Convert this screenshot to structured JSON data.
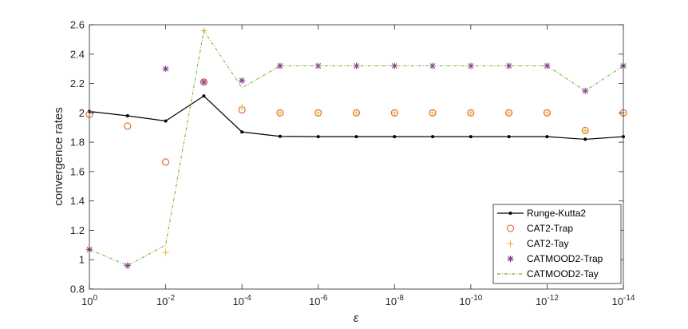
{
  "chart_data": {
    "type": "line",
    "xlabel": "ε",
    "ylabel": "convergence rates",
    "x_scale": "log-reversed",
    "xlim": [
      1,
      1e-14
    ],
    "ylim": [
      0.8,
      2.6
    ],
    "x_ticks": [
      {
        "value": 1,
        "base": "10",
        "exp": "0"
      },
      {
        "value": 0.01,
        "base": "10",
        "exp": "-2"
      },
      {
        "value": 0.0001,
        "base": "10",
        "exp": "-4"
      },
      {
        "value": 1e-06,
        "base": "10",
        "exp": "-6"
      },
      {
        "value": 1e-08,
        "base": "10",
        "exp": "-8"
      },
      {
        "value": 1e-10,
        "base": "10",
        "exp": "-10"
      },
      {
        "value": 1e-12,
        "base": "10",
        "exp": "-12"
      },
      {
        "value": 1e-14,
        "base": "10",
        "exp": "-14"
      }
    ],
    "y_ticks": [
      "0.8",
      "1",
      "1.2",
      "1.4",
      "1.6",
      "1.8",
      "2",
      "2.2",
      "2.4",
      "2.6"
    ],
    "x": [
      1,
      0.1,
      0.01,
      0.001,
      0.0001,
      1e-05,
      1e-06,
      1e-07,
      1e-08,
      1e-09,
      1e-10,
      1e-11,
      1e-12,
      1e-13,
      1e-14
    ],
    "series": [
      {
        "name": "Runge-Kutta2",
        "style": "line-dot",
        "color": "#000000",
        "values": [
          2.01,
          1.98,
          1.945,
          2.115,
          1.87,
          1.84,
          1.838,
          1.838,
          1.838,
          1.838,
          1.838,
          1.838,
          1.838,
          1.82,
          1.838
        ]
      },
      {
        "name": "CAT2-Trap",
        "style": "circle",
        "color": "#D95319",
        "values": [
          1.99,
          1.91,
          1.665,
          2.21,
          2.02,
          2.0,
          2.0,
          2.0,
          2.0,
          2.0,
          2.0,
          2.0,
          2.0,
          1.88,
          2.0
        ]
      },
      {
        "name": "CAT2-Tay",
        "style": "plus",
        "color": "#EDB120",
        "values": [
          1.07,
          0.96,
          1.05,
          2.56,
          2.04,
          2.0,
          2.0,
          2.0,
          2.0,
          2.0,
          2.0,
          2.0,
          2.0,
          1.88,
          2.0
        ]
      },
      {
        "name": "CATMOOD2-Trap",
        "style": "asterisk",
        "color": "#7E2F8E",
        "values": [
          1.07,
          0.96,
          2.3,
          2.21,
          2.22,
          2.32,
          2.32,
          2.32,
          2.32,
          2.32,
          2.32,
          2.32,
          2.32,
          2.15,
          2.32
        ]
      },
      {
        "name": "CATMOOD2-Tay",
        "style": "dashdot",
        "color": "#77AC30",
        "values": [
          1.07,
          0.96,
          1.1,
          2.56,
          2.17,
          2.32,
          2.32,
          2.32,
          2.32,
          2.32,
          2.32,
          2.32,
          2.32,
          2.15,
          2.32
        ]
      }
    ],
    "legend_position": "bottom-right",
    "grid": false
  }
}
